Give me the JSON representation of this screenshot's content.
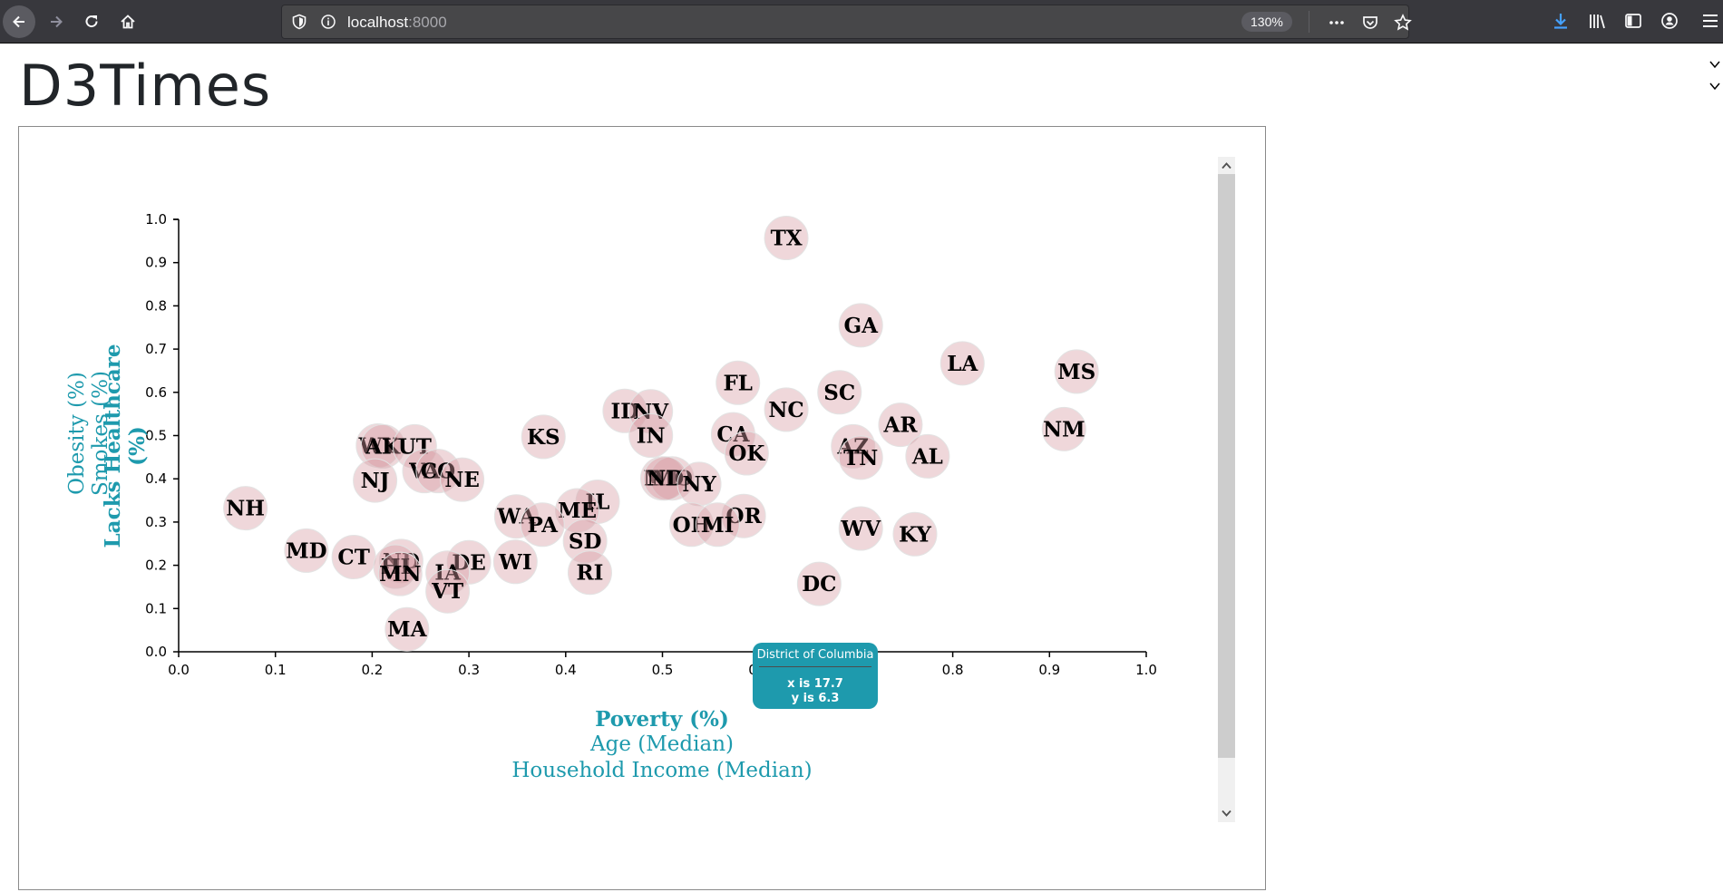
{
  "browser": {
    "url_host": "localhost",
    "url_port": ":8000",
    "zoom": "130%"
  },
  "page": {
    "title": "D3Times"
  },
  "tooltip": {
    "title": "District of Columbia",
    "x_text": "x is 17.7",
    "y_text": "y is 6.3"
  },
  "chart_data": {
    "type": "scatter",
    "xlim": [
      0.0,
      1.0
    ],
    "ylim": [
      0.0,
      1.0
    ],
    "x_ticks": [
      "0.0",
      "0.1",
      "0.2",
      "0.3",
      "0.4",
      "0.5",
      "0.6",
      "0.7",
      "0.8",
      "0.9",
      "1.0"
    ],
    "y_ticks": [
      "0.0",
      "0.1",
      "0.2",
      "0.3",
      "0.4",
      "0.5",
      "0.6",
      "0.7",
      "0.8",
      "0.9",
      "1.0"
    ],
    "x_axis_titles": [
      {
        "label": "Poverty (%)",
        "active": true
      },
      {
        "label": "Age (Median)",
        "active": false
      },
      {
        "label": "Household Income (Median)",
        "active": false
      }
    ],
    "y_axis_titles": [
      {
        "label": "Lacks Healthcare (%)",
        "active": true
      },
      {
        "label": "Smokes (%)",
        "active": false
      },
      {
        "label": "Obesity (%)",
        "active": false
      }
    ],
    "points": [
      {
        "abbr": "TX",
        "x": 0.628,
        "y": 0.957
      },
      {
        "abbr": "GA",
        "x": 0.705,
        "y": 0.755
      },
      {
        "abbr": "LA",
        "x": 0.81,
        "y": 0.667
      },
      {
        "abbr": "MS",
        "x": 0.928,
        "y": 0.648
      },
      {
        "abbr": "FL",
        "x": 0.578,
        "y": 0.622
      },
      {
        "abbr": "SC",
        "x": 0.683,
        "y": 0.6
      },
      {
        "abbr": "NC",
        "x": 0.628,
        "y": 0.56
      },
      {
        "abbr": "ID",
        "x": 0.461,
        "y": 0.557
      },
      {
        "abbr": "NV",
        "x": 0.488,
        "y": 0.556
      },
      {
        "abbr": "AR",
        "x": 0.746,
        "y": 0.525
      },
      {
        "abbr": "NM",
        "x": 0.915,
        "y": 0.515
      },
      {
        "abbr": "CA",
        "x": 0.573,
        "y": 0.503
      },
      {
        "abbr": "IN",
        "x": 0.488,
        "y": 0.5
      },
      {
        "abbr": "KS",
        "x": 0.377,
        "y": 0.497
      },
      {
        "abbr": "AZ",
        "x": 0.697,
        "y": 0.475
      },
      {
        "abbr": "WY",
        "x": 0.206,
        "y": 0.477
      },
      {
        "abbr": "AK",
        "x": 0.211,
        "y": 0.475
      },
      {
        "abbr": "UT",
        "x": 0.244,
        "y": 0.475
      },
      {
        "abbr": "OK",
        "x": 0.587,
        "y": 0.459
      },
      {
        "abbr": "TN",
        "x": 0.705,
        "y": 0.449
      },
      {
        "abbr": "AL",
        "x": 0.774,
        "y": 0.452
      },
      {
        "abbr": "VA",
        "x": 0.254,
        "y": 0.418
      },
      {
        "abbr": "CO",
        "x": 0.268,
        "y": 0.418
      },
      {
        "abbr": "NE",
        "x": 0.293,
        "y": 0.398
      },
      {
        "abbr": "NJ",
        "x": 0.203,
        "y": 0.396
      },
      {
        "abbr": "MT",
        "x": 0.5,
        "y": 0.401
      },
      {
        "abbr": "MO",
        "x": 0.51,
        "y": 0.401
      },
      {
        "abbr": "ND",
        "x": 0.503,
        "y": 0.401
      },
      {
        "abbr": "NY",
        "x": 0.538,
        "y": 0.388
      },
      {
        "abbr": "NH",
        "x": 0.069,
        "y": 0.332
      },
      {
        "abbr": "IL",
        "x": 0.433,
        "y": 0.347
      },
      {
        "abbr": "ME",
        "x": 0.412,
        "y": 0.327
      },
      {
        "abbr": "WA",
        "x": 0.349,
        "y": 0.313
      },
      {
        "abbr": "OR",
        "x": 0.584,
        "y": 0.314
      },
      {
        "abbr": "PA",
        "x": 0.376,
        "y": 0.294
      },
      {
        "abbr": "OH",
        "x": 0.53,
        "y": 0.294
      },
      {
        "abbr": "MI",
        "x": 0.557,
        "y": 0.294
      },
      {
        "abbr": "WV",
        "x": 0.705,
        "y": 0.285
      },
      {
        "abbr": "KY",
        "x": 0.761,
        "y": 0.272
      },
      {
        "abbr": "SD",
        "x": 0.42,
        "y": 0.256
      },
      {
        "abbr": "MD",
        "x": 0.132,
        "y": 0.234
      },
      {
        "abbr": "CT",
        "x": 0.181,
        "y": 0.219
      },
      {
        "abbr": "DE",
        "x": 0.3,
        "y": 0.207
      },
      {
        "abbr": "WI",
        "x": 0.348,
        "y": 0.208
      },
      {
        "abbr": "ND",
        "x": 0.23,
        "y": 0.21
      },
      {
        "abbr": "HI",
        "x": 0.224,
        "y": 0.197
      },
      {
        "abbr": "MN",
        "x": 0.229,
        "y": 0.18
      },
      {
        "abbr": "IA",
        "x": 0.278,
        "y": 0.183
      },
      {
        "abbr": "RI",
        "x": 0.425,
        "y": 0.183
      },
      {
        "abbr": "DC",
        "x": 0.662,
        "y": 0.157
      },
      {
        "abbr": "VT",
        "x": 0.278,
        "y": 0.14
      },
      {
        "abbr": "MA",
        "x": 0.236,
        "y": 0.052
      }
    ]
  }
}
